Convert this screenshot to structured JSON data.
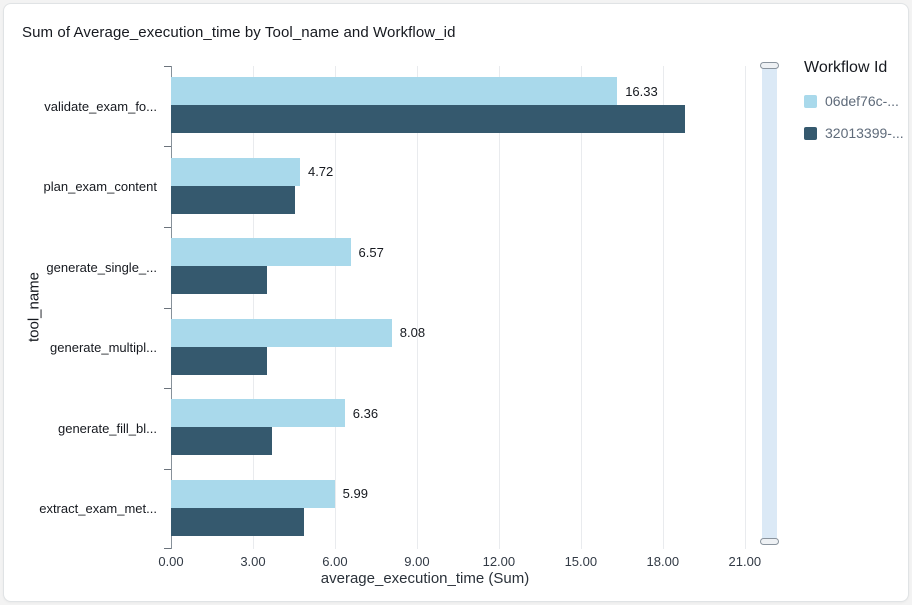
{
  "card": {
    "title": "Sum of Average_execution_time by Tool_name and Workflow_id"
  },
  "chart_data": {
    "type": "bar",
    "orientation": "horizontal",
    "title": "Sum of Average_execution_time by Tool_name and Workflow_id",
    "xlabel": "average_execution_time (Sum)",
    "ylabel": "tool_name",
    "xlim": [
      0,
      21.3
    ],
    "xticks": [
      0,
      3,
      6,
      9,
      12,
      15,
      18,
      21
    ],
    "xtick_labels": [
      "0.00",
      "3.00",
      "6.00",
      "9.00",
      "12.00",
      "15.00",
      "18.00",
      "21.00"
    ],
    "grid": true,
    "categories": [
      "validate_exam_fo...",
      "plan_exam_content",
      "generate_single_...",
      "generate_multipl...",
      "generate_fill_bl...",
      "extract_exam_met..."
    ],
    "series": [
      {
        "name": "06def76c-...",
        "color": "#a9d9eb",
        "values": [
          16.33,
          4.72,
          6.57,
          8.08,
          6.36,
          5.99
        ],
        "data_labels": [
          "16.33",
          "4.72",
          "6.57",
          "8.08",
          "6.36",
          "5.99"
        ]
      },
      {
        "name": "32013399-...",
        "color": "#35596e",
        "values": [
          18.8,
          4.55,
          3.5,
          3.5,
          3.7,
          4.85
        ],
        "data_labels": [
          "",
          "",
          "",
          "",
          "",
          ""
        ]
      }
    ],
    "legend": {
      "title": "Workflow Id",
      "position": "right"
    }
  }
}
